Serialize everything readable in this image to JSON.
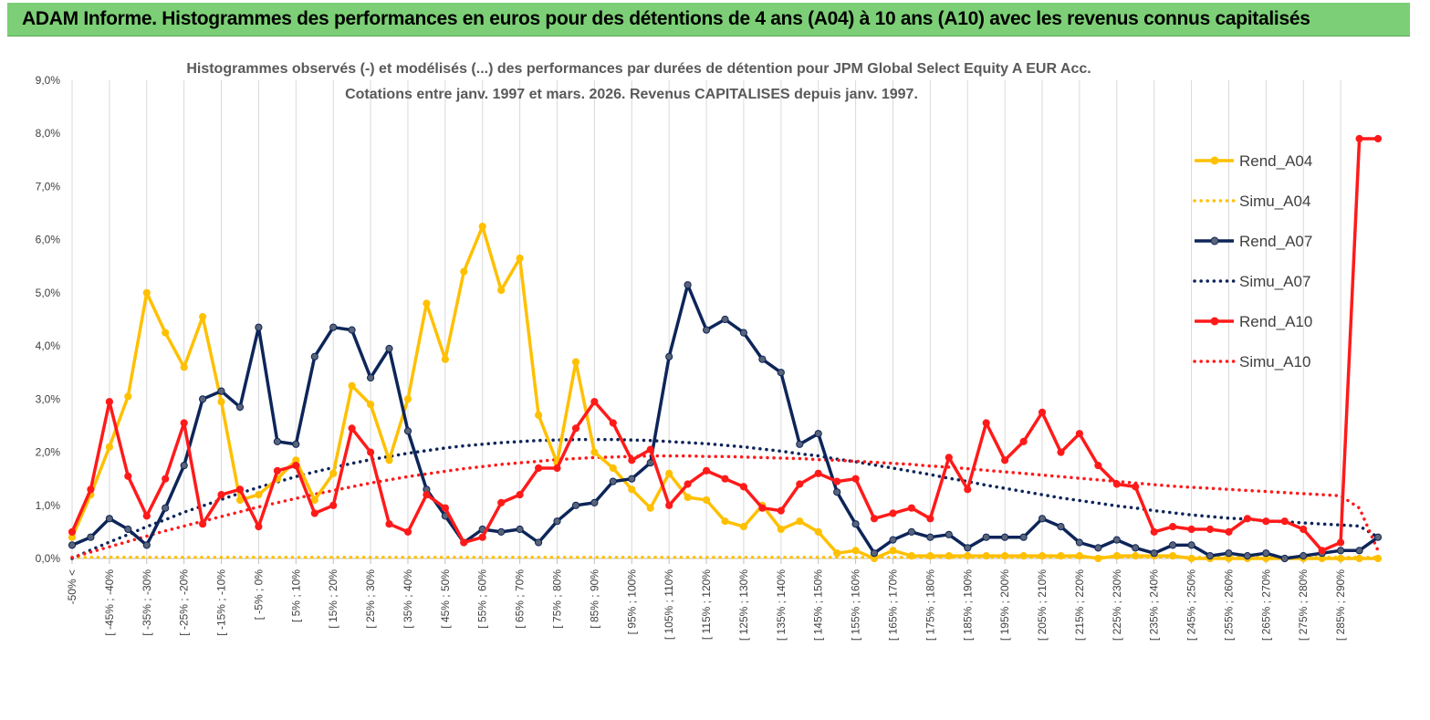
{
  "banner": {
    "title": "ADAM Informe. Histogrammes des performances en euros pour des détentions de 4 ans (A04) à 10 ans (A10) avec les revenus connus capitalisés"
  },
  "colors": {
    "banner": "#7ccf76",
    "A04": "#ffc000",
    "A07": "#0d2559",
    "A10": "#ff1a1a",
    "grid": "#d9d9d9"
  },
  "chart_data": {
    "type": "line",
    "title": "Histogrammes observés (-) et modélisés (...) des performances par durées de détention pour JPM Global Select Equity A EUR Acc.",
    "subtitle": "Cotations entre janv. 1997 et mars. 2026. Revenus CAPITALISES depuis janv. 1997.",
    "ylim": [
      0,
      9
    ],
    "yticks": [
      "0,0%",
      "1,0%",
      "2,0%",
      "3,0%",
      "4,0%",
      "5,0%",
      "6,0%",
      "7,0%",
      "8,0%",
      "9,0%"
    ],
    "grid": "vertical lines at labeled categories",
    "legend_position": "right",
    "x_labels": [
      "-50% <",
      "[ -45% ; -40%",
      "[ -35% ; -30%",
      "[ -25% ; -20%",
      "[ -15% ; -10%",
      "[ -5% ; 0%",
      "[ 5% ; 10%",
      "[ 15% ; 20%",
      "[ 25% ; 30%",
      "[ 35% ; 40%",
      "[ 45% ; 50%",
      "[ 55% ; 60%",
      "[ 65% ; 70%",
      "[ 75% ; 80%",
      "[ 85% ; 90%",
      "[ 95% ; 100%",
      "[ 105% ; 110%",
      "[ 115% ; 120%",
      "[ 125% ; 130%",
      "[ 135% ; 140%",
      "[ 145% ; 150%",
      "[ 155% ; 160%",
      "[ 165% ; 170%",
      "[ 175% ; 180%",
      "[ 185% ; 190%",
      "[ 195% ; 200%",
      "[ 205% ; 210%",
      "[ 215% ; 220%",
      "[ 225% ; 230%",
      "[ 235% ; 240%",
      "[ 245% ; 250%",
      "[ 255% ; 260%",
      "[ 265% ; 270%",
      "[ 275% ; 280%",
      "[ 285% ; 290%"
    ],
    "series": [
      {
        "name": "Rend_A04",
        "style": "solid",
        "color": "#ffc000",
        "values": [
          0.4,
          1.2,
          2.1,
          3.05,
          5.0,
          4.25,
          3.6,
          4.55,
          2.95,
          1.1,
          1.2,
          1.5,
          1.85,
          1.1,
          1.6,
          3.25,
          2.9,
          1.85,
          3.0,
          4.8,
          3.75,
          5.4,
          6.25,
          5.05,
          5.65,
          2.7,
          1.8,
          3.7,
          2.0,
          1.7,
          1.3,
          0.95,
          1.6,
          1.15,
          1.1,
          0.7,
          0.6,
          1.0,
          0.55,
          0.7,
          0.5,
          0.1,
          0.15,
          0.0,
          0.15,
          0.05,
          0.05,
          0.05,
          0.05,
          0.05,
          0.05,
          0.05,
          0.05,
          0.05,
          0.05,
          0.0,
          0.05,
          0.05,
          0.05,
          0.05,
          0.0,
          0.0,
          0.0,
          0.0,
          0.0,
          0.0,
          0.0,
          0.0,
          0.0,
          0.0,
          0.0
        ]
      },
      {
        "name": "Simu_A04",
        "style": "dotted",
        "color": "#ffc000",
        "values": [
          0.02,
          0.02,
          0.02,
          0.02,
          0.02,
          0.02,
          0.02,
          0.02,
          0.02,
          0.02,
          0.02,
          0.02,
          0.02,
          0.02,
          0.02,
          0.02,
          0.02,
          0.02,
          0.02,
          0.02,
          0.02,
          0.02,
          0.02,
          0.02,
          0.02,
          0.02,
          0.02,
          0.02,
          0.02,
          0.02,
          0.02,
          0.02,
          0.02,
          0.02,
          0.02,
          0.02,
          0.02,
          0.02,
          0.02,
          0.02,
          0.02,
          0.02,
          0.02,
          0.02,
          0.02,
          0.02,
          0.02,
          0.02,
          0.02,
          0.02,
          0.02,
          0.02,
          0.02,
          0.02,
          0.02,
          0.02,
          0.02,
          0.02,
          0.02,
          0.02,
          0.02,
          0.02,
          0.02,
          0.02,
          0.02,
          0.02,
          0.02,
          0.02,
          0.02,
          0.02,
          0.02
        ]
      },
      {
        "name": "Rend_A07",
        "style": "solid",
        "color": "#0d2559",
        "values": [
          0.25,
          0.4,
          0.75,
          0.55,
          0.25,
          0.95,
          1.75,
          3.0,
          3.15,
          2.85,
          4.35,
          2.2,
          2.15,
          3.8,
          4.35,
          4.3,
          3.4,
          3.95,
          2.4,
          1.3,
          0.8,
          0.3,
          0.55,
          0.5,
          0.55,
          0.3,
          0.7,
          1.0,
          1.05,
          1.45,
          1.5,
          1.8,
          3.8,
          5.15,
          4.3,
          4.5,
          4.25,
          3.75,
          3.5,
          2.15,
          2.35,
          1.25,
          0.65,
          0.1,
          0.35,
          0.5,
          0.4,
          0.45,
          0.2,
          0.4,
          0.4,
          0.4,
          0.75,
          0.6,
          0.3,
          0.2,
          0.35,
          0.2,
          0.1,
          0.25,
          0.25,
          0.05,
          0.1,
          0.05,
          0.1,
          0.0,
          0.05,
          0.1,
          0.15,
          0.15,
          0.4
        ]
      },
      {
        "name": "Simu_A07",
        "style": "dotted",
        "color": "#0d2559",
        "values": [
          0.0,
          0.16,
          0.31,
          0.45,
          0.6,
          0.73,
          0.87,
          0.99,
          1.11,
          1.23,
          1.34,
          1.44,
          1.54,
          1.63,
          1.71,
          1.79,
          1.86,
          1.92,
          1.98,
          2.03,
          2.08,
          2.12,
          2.15,
          2.18,
          2.2,
          2.22,
          2.23,
          2.24,
          2.24,
          2.24,
          2.23,
          2.22,
          2.2,
          2.18,
          2.16,
          2.13,
          2.1,
          2.06,
          2.02,
          1.97,
          1.93,
          1.87,
          1.82,
          1.76,
          1.7,
          1.64,
          1.58,
          1.51,
          1.45,
          1.38,
          1.32,
          1.26,
          1.2,
          1.14,
          1.09,
          1.04,
          0.99,
          0.95,
          0.9,
          0.86,
          0.82,
          0.79,
          0.76,
          0.74,
          0.71,
          0.69,
          0.67,
          0.65,
          0.63,
          0.61,
          0.4
        ]
      },
      {
        "name": "Rend_A10",
        "style": "solid",
        "color": "#ff1a1a",
        "values": [
          0.5,
          1.3,
          2.95,
          1.55,
          0.8,
          1.5,
          2.55,
          0.65,
          1.2,
          1.3,
          0.6,
          1.65,
          1.75,
          0.85,
          1.0,
          2.45,
          2.0,
          0.65,
          0.5,
          1.2,
          0.95,
          0.3,
          0.4,
          1.05,
          1.2,
          1.7,
          1.7,
          2.45,
          2.95,
          2.55,
          1.85,
          2.05,
          1.0,
          1.4,
          1.65,
          1.5,
          1.35,
          0.95,
          0.9,
          1.4,
          1.6,
          1.45,
          1.5,
          0.75,
          0.85,
          0.95,
          0.75,
          1.9,
          1.3,
          2.55,
          1.85,
          2.2,
          2.75,
          2.0,
          2.35,
          1.75,
          1.4,
          1.35,
          0.5,
          0.6,
          0.55,
          0.55,
          0.5,
          0.75,
          0.7,
          0.7,
          0.55,
          0.15,
          0.3,
          7.9,
          7.9
        ]
      },
      {
        "name": "Simu_A10",
        "style": "dotted",
        "color": "#ff1a1a",
        "values": [
          0.02,
          0.12,
          0.22,
          0.32,
          0.42,
          0.52,
          0.61,
          0.7,
          0.79,
          0.88,
          0.97,
          1.05,
          1.13,
          1.21,
          1.28,
          1.35,
          1.42,
          1.48,
          1.54,
          1.59,
          1.64,
          1.69,
          1.73,
          1.77,
          1.8,
          1.83,
          1.86,
          1.88,
          1.9,
          1.91,
          1.92,
          1.93,
          1.93,
          1.93,
          1.92,
          1.92,
          1.91,
          1.9,
          1.89,
          1.88,
          1.86,
          1.85,
          1.83,
          1.81,
          1.79,
          1.77,
          1.74,
          1.72,
          1.69,
          1.66,
          1.63,
          1.6,
          1.57,
          1.54,
          1.51,
          1.48,
          1.45,
          1.42,
          1.39,
          1.36,
          1.34,
          1.32,
          1.3,
          1.28,
          1.26,
          1.24,
          1.22,
          1.2,
          1.18,
          0.95,
          0.15
        ]
      }
    ]
  }
}
